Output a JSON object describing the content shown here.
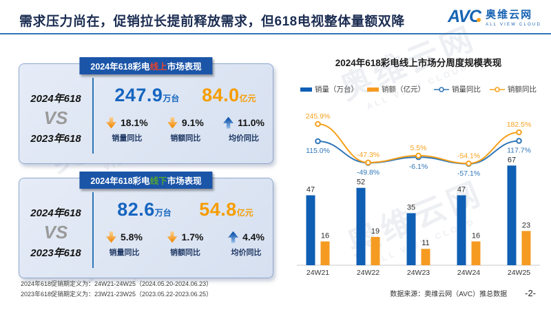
{
  "header": {
    "title": "需求压力尚在，促销拉长提前释放需求，但618电视整体量额双降",
    "logo": {
      "mark": "AVC",
      "name": "奥维云网",
      "tagline": "ALL VIEW CLOUD"
    }
  },
  "watermark": {
    "name": "奥维云网",
    "tagline": "ALL VIEW CLOUD"
  },
  "panels": [
    {
      "header": {
        "prefix": "2024年618彩电",
        "channel": "线上",
        "suffix": "市场表现",
        "channel_color": "#e8432d"
      },
      "compare": {
        "top": "2024年618",
        "vs": "VS",
        "bottom": "2023年618"
      },
      "metrics": [
        {
          "value": "247.9",
          "unit": "万台",
          "color": "#1565c0"
        },
        {
          "value": "84.0",
          "unit": "亿元",
          "color": "#f59d00"
        }
      ],
      "stats": [
        {
          "direction": "down",
          "value": "18.1%",
          "label": "销量同比"
        },
        {
          "direction": "down",
          "value": "9.1%",
          "label": "销额同比"
        },
        {
          "direction": "up",
          "value": "11.0%",
          "label": "均价同比"
        }
      ]
    },
    {
      "header": {
        "prefix": "2024年618彩电",
        "channel": "线下",
        "suffix": "市场表现",
        "channel_color": "#55a532"
      },
      "compare": {
        "top": "2024年618",
        "vs": "VS",
        "bottom": "2023年618"
      },
      "metrics": [
        {
          "value": "82.6",
          "unit": "万台",
          "color": "#1565c0"
        },
        {
          "value": "54.8",
          "unit": "亿元",
          "color": "#f59d00"
        }
      ],
      "stats": [
        {
          "direction": "down",
          "value": "5.8%",
          "label": "销量同比"
        },
        {
          "direction": "down",
          "value": "1.7%",
          "label": "销额同比"
        },
        {
          "direction": "up",
          "value": "4.4%",
          "label": "均价同比"
        }
      ]
    }
  ],
  "chart_data": {
    "type": "bar+line combo",
    "title": "2024年618彩电线上市场分周度规模表现",
    "categories": [
      "24W21",
      "24W22",
      "24W23",
      "24W24",
      "24W25"
    ],
    "series": [
      {
        "name": "销量（万台）",
        "type": "bar",
        "color": "#0f5fb4",
        "values": [
          47,
          52,
          35,
          47,
          67
        ]
      },
      {
        "name": "销额（亿元）",
        "type": "bar",
        "color": "#f59b22",
        "values": [
          16,
          19,
          11,
          16,
          23
        ]
      },
      {
        "name": "销量同比",
        "type": "line",
        "color": "#2e75b6",
        "unit": "%",
        "label_position": "below",
        "values": [
          115.0,
          -49.8,
          -6.1,
          -57.1,
          117.7
        ]
      },
      {
        "name": "销额同比",
        "type": "line",
        "color": "#f6a01a",
        "unit": "%",
        "label_position": "above",
        "values": [
          245.9,
          -47.3,
          5.5,
          -54.1,
          182.5
        ]
      }
    ],
    "legend_position": "top",
    "gridlines": false,
    "bar_axis_range": [
      0,
      70
    ],
    "pct_axis_range": [
      -100,
      300
    ],
    "axes_hidden": true
  },
  "footer": {
    "footnotes": [
      "2024年618促销期定义为：24W21-24W25（2024.05.20-2024.06.23）",
      "2023年618促销期定义为：23W21-23W25（2023.05.22-2023.06.25）"
    ],
    "source": "数据来源：奥维云网（AVC）推总数据",
    "page": "-2-"
  }
}
